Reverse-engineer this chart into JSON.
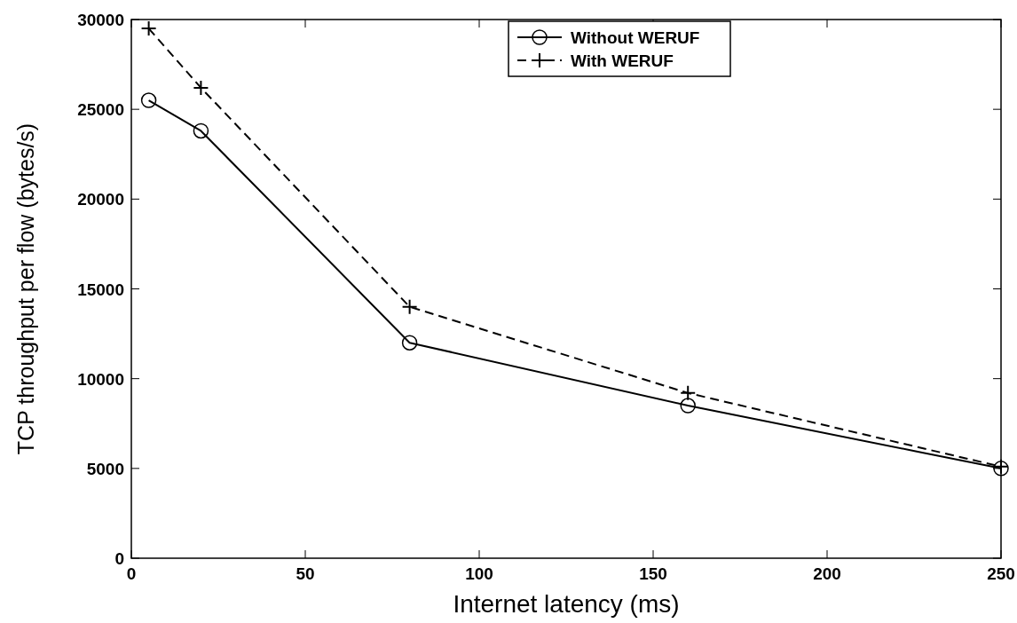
{
  "chart_data": {
    "type": "line",
    "xlabel": "Internet latency (ms)",
    "ylabel": "TCP throughput per flow (bytes/s)",
    "x": [
      5,
      20,
      80,
      160,
      250
    ],
    "series": [
      {
        "name": "Without WERUF",
        "color": "#000000",
        "values": [
          25500,
          23800,
          12000,
          8500,
          5000
        ],
        "marker": "circle",
        "line_style": "solid"
      },
      {
        "name": "With WERUF",
        "color": "#000000",
        "values": [
          29500,
          26200,
          14000,
          9200,
          5100
        ],
        "marker": "cross",
        "line_style": "dashed"
      }
    ],
    "xlim": [
      0,
      250
    ],
    "xticks": [
      0,
      50,
      100,
      150,
      200,
      250
    ],
    "ylim": [
      0,
      30000
    ],
    "yticks": [
      0,
      5000,
      10000,
      15000,
      20000,
      25000,
      30000
    ],
    "grid": false,
    "legend": "top"
  }
}
